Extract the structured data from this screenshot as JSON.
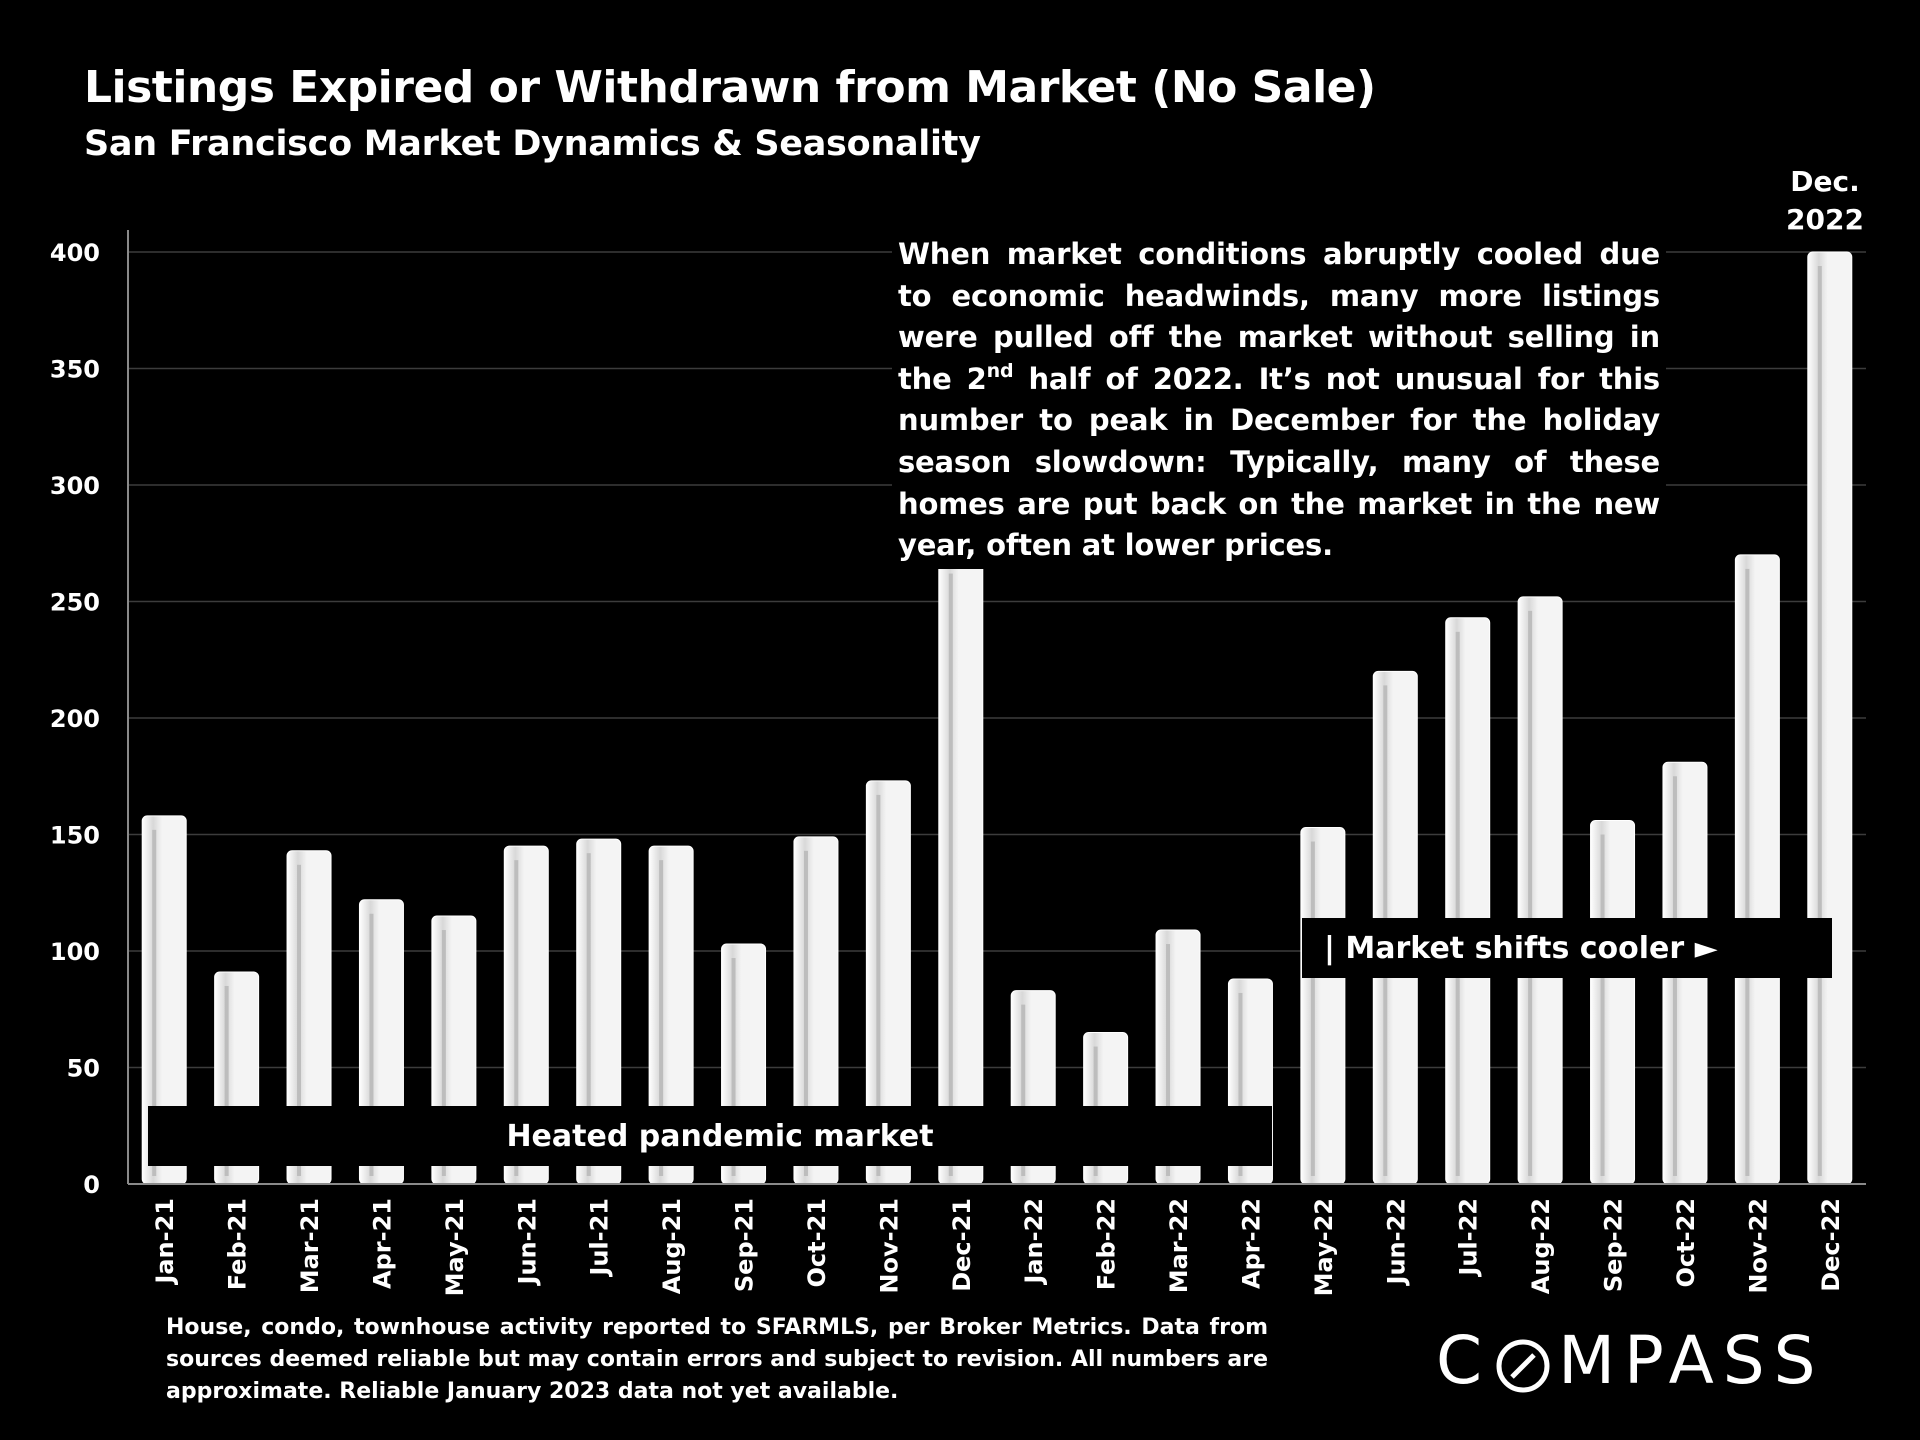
{
  "header": {
    "title": "Listings Expired or Withdrawn from Market (No Sale)",
    "subtitle": "San Francisco Market Dynamics & Seasonality"
  },
  "chart_data": {
    "type": "bar",
    "title": "Listings Expired or Withdrawn from Market (No Sale)",
    "subtitle": "San Francisco Market Dynamics & Seasonality",
    "categories": [
      "Jan-21",
      "Feb-21",
      "Mar-21",
      "Apr-21",
      "May-21",
      "Jun-21",
      "Jul-21",
      "Aug-21",
      "Sep-21",
      "Oct-21",
      "Nov-21",
      "Dec-21",
      "Jan-22",
      "Feb-22",
      "Mar-22",
      "Apr-22",
      "May-22",
      "Jun-22",
      "Jul-22",
      "Aug-22",
      "Sep-22",
      "Oct-22",
      "Nov-22",
      "Dec-22"
    ],
    "values": [
      158,
      91,
      143,
      122,
      115,
      145,
      148,
      145,
      103,
      149,
      173,
      268,
      83,
      65,
      109,
      88,
      153,
      220,
      243,
      252,
      156,
      181,
      270,
      400
    ],
    "xlabel": "",
    "ylabel": "",
    "ylim": [
      0,
      400
    ],
    "yticks": [
      0,
      50,
      100,
      150,
      200,
      250,
      300,
      350,
      400
    ],
    "grid": true,
    "legend": "none",
    "bar_color": "#f2f2f2"
  },
  "annotations": {
    "main_text_part1": "When market conditions abruptly cooled due to economic headwinds, many more listings were pulled off the market without selling in the 2",
    "main_text_sup": "nd",
    "main_text_part2": " half of 2022. It’s not unusual for this number to peak in December for the holiday season slowdown: Typically, many of these homes are put back on the market in the new year, often at lower prices.",
    "dec_label_line1": "Dec.",
    "dec_label_line2": "2022",
    "heated_label": "Heated pandemic market",
    "cooler_label": "| Market shifts cooler ►"
  },
  "footer": {
    "footnote": "House, condo, townhouse activity reported to SFARMLS, per Broker Metrics. Data from sources deemed reliable but may contain errors and subject to revision. All numbers are approximate. Reliable January 2023 data not yet available.",
    "logo_left": "C",
    "logo_right": "MPASS"
  }
}
